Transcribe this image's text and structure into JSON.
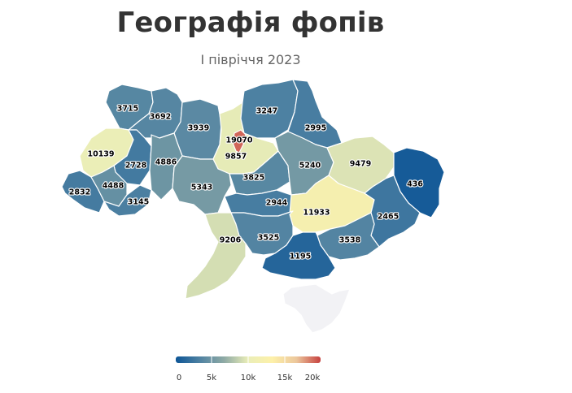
{
  "title": "Географія фопів",
  "subtitle": "І півріччя 2023",
  "colors": {
    "scale": [
      "#0d5596",
      "#4f82a2",
      "#8faaa5",
      "#eaeeb8",
      "#fdf0a9",
      "#ecc79c",
      "#c6413f"
    ],
    "no_data": "#f2f2f5"
  },
  "legend": {
    "ticks": [
      "0",
      "5k",
      "10k",
      "15k",
      "20k"
    ],
    "min": 0,
    "max": 20000
  },
  "chart_data": {
    "type": "choropleth",
    "regions": [
      {
        "id": "volyn",
        "value": 3715
      },
      {
        "id": "rivne",
        "value": 3692
      },
      {
        "id": "zhytomyr",
        "value": 3939
      },
      {
        "id": "kyiv-oblast",
        "value": 9857
      },
      {
        "id": "kyiv-city",
        "value": 19070
      },
      {
        "id": "chernihiv",
        "value": 3247
      },
      {
        "id": "sumy",
        "value": 2995
      },
      {
        "id": "lviv",
        "value": 10139
      },
      {
        "id": "ternopil",
        "value": 2728
      },
      {
        "id": "khmelnytskyi",
        "value": 4886
      },
      {
        "id": "vinnytsia",
        "value": 5343
      },
      {
        "id": "cherkasy",
        "value": 3825
      },
      {
        "id": "poltava",
        "value": 5240
      },
      {
        "id": "kharkiv",
        "value": 9479
      },
      {
        "id": "luhansk",
        "value": 436
      },
      {
        "id": "zakarpattia",
        "value": 2832
      },
      {
        "id": "ivano-frankivsk",
        "value": 4488
      },
      {
        "id": "chernivtsi",
        "value": 3145
      },
      {
        "id": "kirovohrad",
        "value": 2944
      },
      {
        "id": "dnipropetrovsk",
        "value": 11933
      },
      {
        "id": "donetsk",
        "value": 2465
      },
      {
        "id": "odesa",
        "value": 9206
      },
      {
        "id": "mykolaiv",
        "value": 3525
      },
      {
        "id": "zaporizhzhia",
        "value": 3538
      },
      {
        "id": "kherson",
        "value": 1195
      },
      {
        "id": "crimea",
        "value": null
      }
    ]
  }
}
